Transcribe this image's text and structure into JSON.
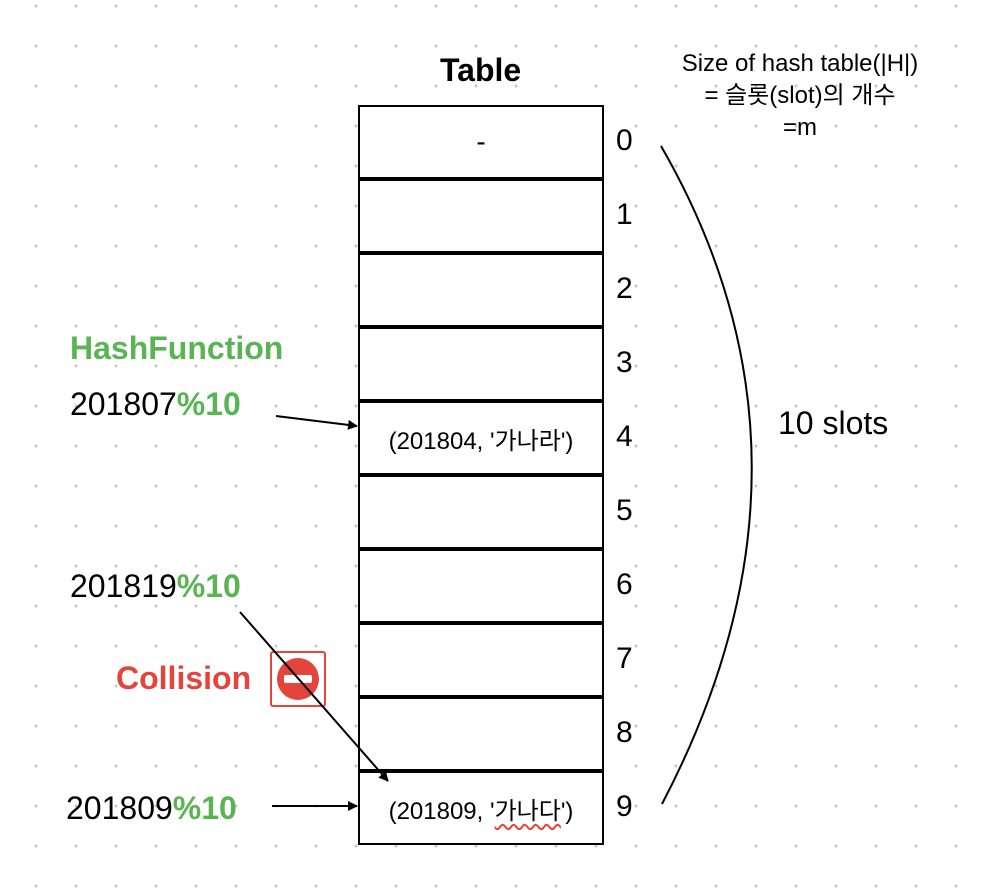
{
  "table_title": "Table",
  "size_note": {
    "line1": "Size of hash table(|H|)",
    "line2": "= 슬롯(slot)의 개수",
    "line3": "=m"
  },
  "slots": [
    {
      "index": "0",
      "content": "-"
    },
    {
      "index": "1",
      "content": ""
    },
    {
      "index": "2",
      "content": ""
    },
    {
      "index": "3",
      "content": ""
    },
    {
      "index": "4",
      "content": "(201804, '가나라')"
    },
    {
      "index": "5",
      "content": ""
    },
    {
      "index": "6",
      "content": ""
    },
    {
      "index": "7",
      "content": ""
    },
    {
      "index": "8",
      "content": ""
    },
    {
      "index": "9",
      "content_prefix": "(201809, '",
      "content_underlined": "가나다",
      "content_suffix": "')"
    }
  ],
  "hash_function_label": "HashFunction",
  "inputs": [
    {
      "key": "201807",
      "op": "%10"
    },
    {
      "key": "201819",
      "op": "%10"
    },
    {
      "key": "201809",
      "op": "%10"
    }
  ],
  "collision_label": "Collision",
  "slots_count_label": "10 slots",
  "colors": {
    "green": "#59b553",
    "red": "#e5443c"
  },
  "icons": [
    "no-entry-icon"
  ]
}
